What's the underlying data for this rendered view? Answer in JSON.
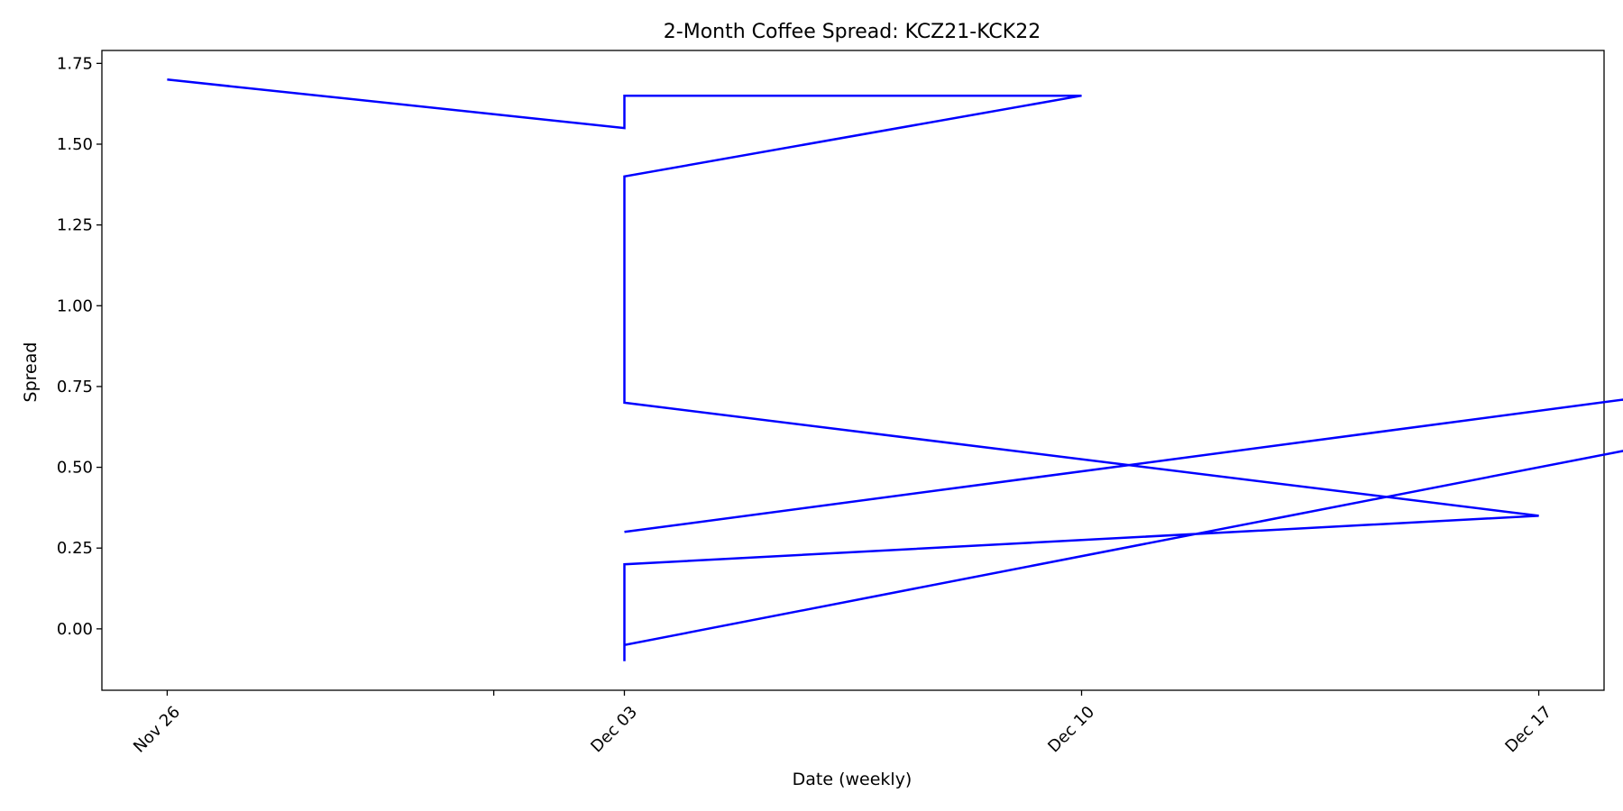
{
  "chart_data": {
    "type": "line",
    "title": "2-Month Coffee Spread: KCZ21-KCK22",
    "xlabel": "Date (weekly)",
    "ylabel": "Spread",
    "x_axis": {
      "type": "date",
      "range": [
        "2021-11-25",
        "2021-12-18"
      ],
      "ticks": [
        {
          "date": "2021-11-26",
          "label": "Nov 26"
        },
        {
          "date": "2021-12-01",
          "label": ""
        },
        {
          "date": "2021-12-03",
          "label": "Dec 03"
        },
        {
          "date": "2021-12-10",
          "label": "Dec 10"
        },
        {
          "date": "2021-12-17",
          "label": "Dec 17"
        }
      ]
    },
    "y_axis": {
      "range": [
        -0.19,
        1.79
      ],
      "ticks": [
        {
          "value": -0.0,
          "label": "0.00"
        },
        {
          "value": 0.25,
          "label": "0.25"
        },
        {
          "value": 0.5,
          "label": "0.50"
        },
        {
          "value": 0.75,
          "label": "0.75"
        },
        {
          "value": 1.0,
          "label": "1.00"
        },
        {
          "value": 1.25,
          "label": "1.25"
        },
        {
          "value": 1.5,
          "label": "1.50"
        },
        {
          "value": 1.75,
          "label": "1.75"
        }
      ]
    },
    "grid": false,
    "series": [
      {
        "color": "#0000ff",
        "points": [
          {
            "x": "2021-11-26",
            "y": 1.7
          },
          {
            "x": "2021-12-03",
            "y": 1.55
          },
          {
            "x": "2021-12-03",
            "y": 1.65
          },
          {
            "x": "2021-12-10",
            "y": 1.65
          },
          {
            "x": "2021-12-03",
            "y": 1.4
          },
          {
            "x": "2021-12-03",
            "y": 0.7
          },
          {
            "x": "2021-12-17",
            "y": 0.35
          },
          {
            "x": "2021-12-03",
            "y": 0.2
          },
          {
            "x": "2021-12-03",
            "y": -0.1
          },
          {
            "x": "2021-12-03",
            "y": -0.05
          },
          {
            "x": "2021-12-31",
            "y": 1.05
          },
          {
            "x": "2021-12-03",
            "y": 0.3
          }
        ]
      }
    ]
  }
}
